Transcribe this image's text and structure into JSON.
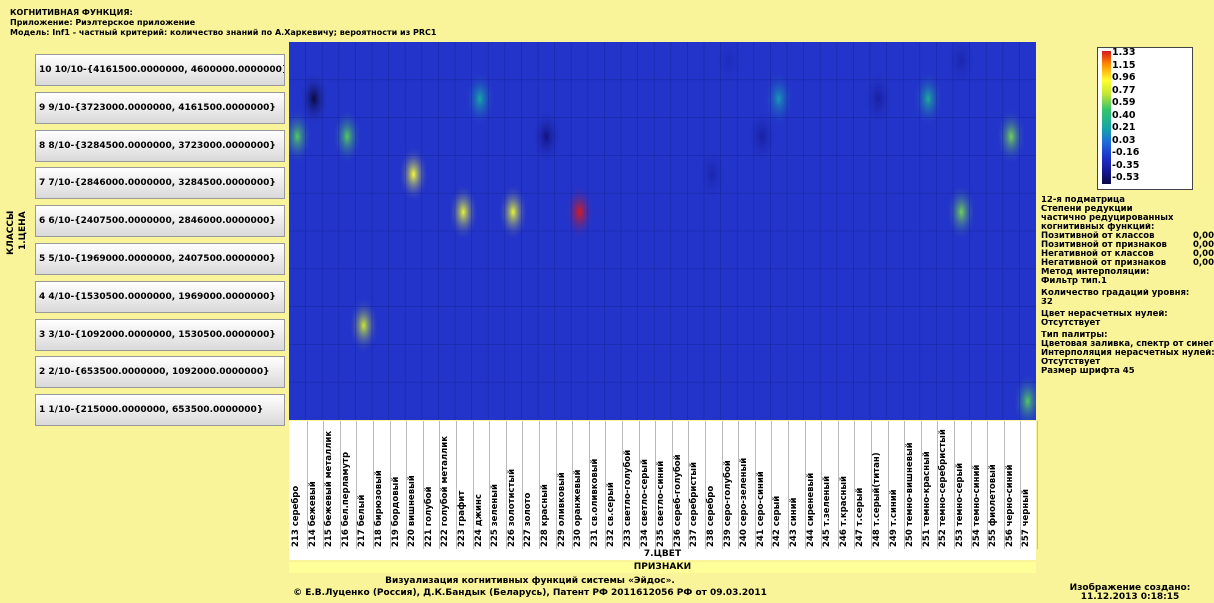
{
  "header": {
    "line1": "КОГНИТИВНАЯ ФУНКЦИЯ:",
    "line2": "Приложение: Риэлтерское приложение",
    "line3": "Модель: Inf1 - частный критерий: количество знаний по А.Харкевичу; вероятности из PRC1"
  },
  "axis": {
    "classes_label": "КЛАССЫ",
    "scale_label": "1.ЦЕНА",
    "feature_group": "7.ЦВЕТ",
    "features_label": "ПРИЗНАКИ"
  },
  "chart_data": {
    "type": "heatmap",
    "rows": [
      "10 10/10-{4161500.0000000, 4600000.0000000}",
      "9 9/10-{3723000.0000000, 4161500.0000000}",
      "8 8/10-{3284500.0000000, 3723000.0000000}",
      "7 7/10-{2846000.0000000, 3284500.0000000}",
      "6 6/10-{2407500.0000000, 2846000.0000000}",
      "5 5/10-{1969000.0000000, 2407500.0000000}",
      "4 4/10-{1530500.0000000, 1969000.0000000}",
      "3 3/10-{1092000.0000000, 1530500.0000000}",
      "2 2/10-{653500.0000000, 1092000.0000000}",
      "1 1/10-{215000.0000000, 653500.0000000}"
    ],
    "columns": [
      "213 серебро",
      "214 бежевый",
      "215 бежевый металлик",
      "216 бел.перламутр",
      "217 белый",
      "218 бирюзовый",
      "219 бордовый",
      "220 вишневый",
      "221 голубой",
      "222 голубой металлик",
      "223 графит",
      "224 джинс",
      "225 зеленый",
      "226 золотистый",
      "227 золото",
      "228 красный",
      "229 оливковый",
      "230 оранжевый",
      "231 св.оливковый",
      "232 св.серый",
      "233 светло-голубой",
      "234 светло-серый",
      "235 светло-синий",
      "236 сереб-голубой",
      "237 серебристый",
      "238 серебро",
      "239 серо-голубой",
      "240 серо-зеленый",
      "241 серо-синий",
      "242 серый",
      "243 синий",
      "244 сиреневый",
      "245 т.зеленый",
      "246 т.красный",
      "247 т.серый",
      "248 т.серый(титан)",
      "249 т.синий",
      "250 темно-вишневый",
      "251 темно-красный",
      "252 темно-серебристый",
      "253 темно-серый",
      "254 темно-синий",
      "255 фиолетовый",
      "256 черно-синий",
      "257 черный"
    ],
    "cells": [
      {
        "row": 1,
        "col": 45,
        "value": 0.55
      },
      {
        "row": 3,
        "col": 5,
        "value": 0.75
      },
      {
        "row": 6,
        "col": 11,
        "value": 0.85
      },
      {
        "row": 6,
        "col": 14,
        "value": 0.85
      },
      {
        "row": 6,
        "col": 18,
        "value": 1.33
      },
      {
        "row": 6,
        "col": 41,
        "value": 0.6
      },
      {
        "row": 7,
        "col": 8,
        "value": 0.9
      },
      {
        "row": 7,
        "col": 26,
        "value": -0.25
      },
      {
        "row": 8,
        "col": 1,
        "value": 0.55
      },
      {
        "row": 8,
        "col": 4,
        "value": 0.55
      },
      {
        "row": 8,
        "col": 16,
        "value": -0.4
      },
      {
        "row": 8,
        "col": 29,
        "value": -0.3
      },
      {
        "row": 8,
        "col": 44,
        "value": 0.6
      },
      {
        "row": 9,
        "col": 2,
        "value": -0.53
      },
      {
        "row": 9,
        "col": 36,
        "value": -0.3
      },
      {
        "row": 9,
        "col": 39,
        "value": 0.3
      },
      {
        "row": 9,
        "col": 12,
        "value": 0.25
      },
      {
        "row": 9,
        "col": 30,
        "value": 0.2
      },
      {
        "row": 10,
        "col": 41,
        "value": -0.25
      },
      {
        "row": 10,
        "col": 27,
        "value": -0.2
      }
    ],
    "legend_ticks": [
      "1.33",
      "1.15",
      "0.96",
      "0.77",
      "0.59",
      "0.40",
      "0.21",
      "0.03",
      "-0.16",
      "-0.35",
      "-0.53"
    ],
    "vmin": -0.53,
    "vmax": 1.33,
    "colormap": "spectrum from blue to red"
  },
  "info": {
    "lines": [
      "12-я подматрица",
      "Степени редукции",
      "частично редуцированных",
      "когнитивных функций:"
    ],
    "kv": [
      {
        "k": "Позитивной от классов",
        "v": "0,00"
      },
      {
        "k": "Позитивной от признаков",
        "v": "0,00"
      },
      {
        "k": "Негативной от классов",
        "v": "0,00"
      },
      {
        "k": "Негативной от признаков",
        "v": "0,00"
      }
    ],
    "lines2": [
      "Метод интерполяции:",
      "Фильтр тип.1",
      "Количество градаций уровня:",
      "32",
      "Цвет нерасчетных нулей:",
      "Отсутствует",
      "Тип палитры:",
      "Цветовая заливка, спектр от синего",
      "Интерполяция нерасчетных нулей:",
      "Отсутствует",
      "Размер шрифта 45"
    ]
  },
  "footer": {
    "line1": "Визуализация когнитивных функций системы «Эйдос».",
    "line2": "© Е.В.Луценко (Россия), Д.К.Бандык (Беларусь), Патент РФ  2011612056 РФ от 09.03.2011",
    "created_label": "Изображение создано:",
    "created_time": "11.12.2013  0:18:15"
  }
}
